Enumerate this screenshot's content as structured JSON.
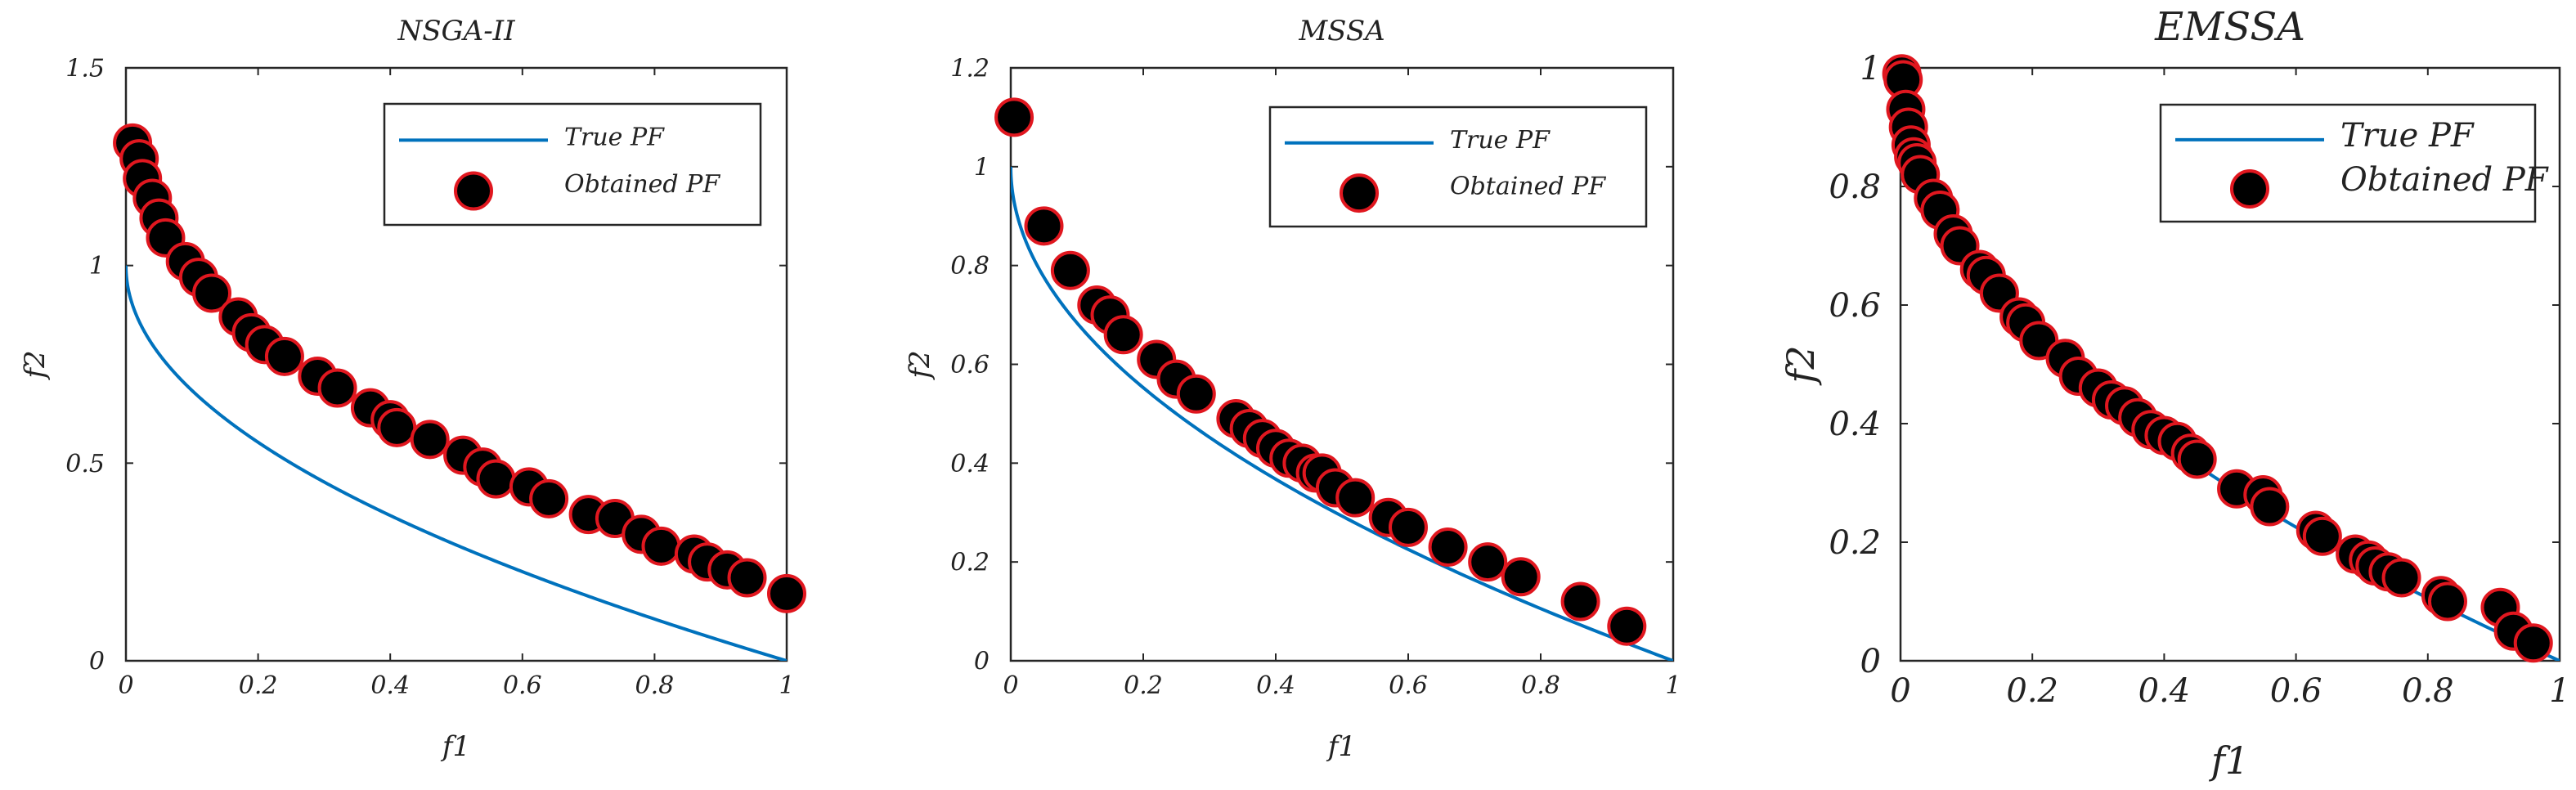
{
  "chart_data": [
    {
      "type": "scatter",
      "title": "NSGA-II",
      "xlabel": "f1",
      "ylabel": "f2",
      "xlim": [
        0,
        1
      ],
      "ylim": [
        0,
        1.5
      ],
      "xticks": [
        "0",
        "0.2",
        "0.4",
        "0.6",
        "0.8",
        "1"
      ],
      "yticks": [
        "0",
        "0.5",
        "1",
        "1.5"
      ],
      "legend_position": "top-right",
      "series": [
        {
          "name": "True PF",
          "kind": "line",
          "color": "#0072BD",
          "function": "1-sqrt(x)"
        },
        {
          "name": "Obtained PF",
          "kind": "marker",
          "color": "#000000",
          "edge_color": "#E0171F",
          "points": [
            [
              0.01,
              1.31
            ],
            [
              0.02,
              1.27
            ],
            [
              0.025,
              1.22
            ],
            [
              0.04,
              1.17
            ],
            [
              0.05,
              1.12
            ],
            [
              0.06,
              1.07
            ],
            [
              0.09,
              1.01
            ],
            [
              0.11,
              0.97
            ],
            [
              0.13,
              0.93
            ],
            [
              0.17,
              0.87
            ],
            [
              0.19,
              0.83
            ],
            [
              0.21,
              0.8
            ],
            [
              0.24,
              0.77
            ],
            [
              0.29,
              0.72
            ],
            [
              0.32,
              0.69
            ],
            [
              0.37,
              0.64
            ],
            [
              0.4,
              0.61
            ],
            [
              0.41,
              0.59
            ],
            [
              0.46,
              0.56
            ],
            [
              0.51,
              0.52
            ],
            [
              0.54,
              0.49
            ],
            [
              0.56,
              0.46
            ],
            [
              0.61,
              0.44
            ],
            [
              0.64,
              0.41
            ],
            [
              0.7,
              0.37
            ],
            [
              0.74,
              0.36
            ],
            [
              0.78,
              0.32
            ],
            [
              0.81,
              0.29
            ],
            [
              0.86,
              0.27
            ],
            [
              0.88,
              0.25
            ],
            [
              0.91,
              0.23
            ],
            [
              0.94,
              0.21
            ],
            [
              1.0,
              0.17
            ]
          ]
        }
      ]
    },
    {
      "type": "scatter",
      "title": "MSSA",
      "xlabel": "f1",
      "ylabel": "f2",
      "xlim": [
        0,
        1
      ],
      "ylim": [
        0,
        1.2
      ],
      "xticks": [
        "0",
        "0.2",
        "0.4",
        "0.6",
        "0.8",
        "1"
      ],
      "yticks": [
        "0",
        "0.2",
        "0.4",
        "0.6",
        "0.8",
        "1",
        "1.2"
      ],
      "legend_position": "top-right",
      "series": [
        {
          "name": "True PF",
          "kind": "line",
          "color": "#0072BD",
          "function": "1-sqrt(x)"
        },
        {
          "name": "Obtained PF",
          "kind": "marker",
          "color": "#000000",
          "edge_color": "#E0171F",
          "points": [
            [
              0.005,
              1.1
            ],
            [
              0.05,
              0.88
            ],
            [
              0.09,
              0.79
            ],
            [
              0.13,
              0.72
            ],
            [
              0.15,
              0.7
            ],
            [
              0.17,
              0.66
            ],
            [
              0.22,
              0.61
            ],
            [
              0.25,
              0.57
            ],
            [
              0.28,
              0.54
            ],
            [
              0.34,
              0.49
            ],
            [
              0.36,
              0.47
            ],
            [
              0.38,
              0.45
            ],
            [
              0.4,
              0.43
            ],
            [
              0.42,
              0.41
            ],
            [
              0.44,
              0.4
            ],
            [
              0.46,
              0.38
            ],
            [
              0.47,
              0.38
            ],
            [
              0.49,
              0.35
            ],
            [
              0.52,
              0.33
            ],
            [
              0.57,
              0.29
            ],
            [
              0.6,
              0.27
            ],
            [
              0.66,
              0.23
            ],
            [
              0.72,
              0.2
            ],
            [
              0.77,
              0.17
            ],
            [
              0.86,
              0.12
            ],
            [
              0.93,
              0.07
            ]
          ]
        }
      ]
    },
    {
      "type": "scatter",
      "title": "EMSSA",
      "xlabel": "f1",
      "ylabel": "f2",
      "xlim": [
        0,
        1
      ],
      "ylim": [
        0,
        1
      ],
      "xticks": [
        "0",
        "0.2",
        "0.4",
        "0.6",
        "0.8",
        "1"
      ],
      "yticks": [
        "0",
        "0.2",
        "0.4",
        "0.6",
        "0.8",
        "1"
      ],
      "legend_position": "top-right",
      "series": [
        {
          "name": "True PF",
          "kind": "line",
          "color": "#0072BD",
          "function": "1-sqrt(x)"
        },
        {
          "name": "Obtained PF",
          "kind": "marker",
          "color": "#000000",
          "edge_color": "#E0171F",
          "points": [
            [
              0.002,
              0.99
            ],
            [
              0.004,
              0.98
            ],
            [
              0.008,
              0.93
            ],
            [
              0.012,
              0.9
            ],
            [
              0.016,
              0.87
            ],
            [
              0.02,
              0.85
            ],
            [
              0.025,
              0.84
            ],
            [
              0.03,
              0.82
            ],
            [
              0.05,
              0.78
            ],
            [
              0.06,
              0.76
            ],
            [
              0.08,
              0.72
            ],
            [
              0.09,
              0.7
            ],
            [
              0.12,
              0.66
            ],
            [
              0.13,
              0.65
            ],
            [
              0.15,
              0.62
            ],
            [
              0.18,
              0.58
            ],
            [
              0.19,
              0.57
            ],
            [
              0.21,
              0.54
            ],
            [
              0.25,
              0.51
            ],
            [
              0.27,
              0.48
            ],
            [
              0.3,
              0.46
            ],
            [
              0.32,
              0.44
            ],
            [
              0.34,
              0.43
            ],
            [
              0.36,
              0.41
            ],
            [
              0.38,
              0.39
            ],
            [
              0.4,
              0.38
            ],
            [
              0.42,
              0.37
            ],
            [
              0.44,
              0.35
            ],
            [
              0.45,
              0.34
            ],
            [
              0.51,
              0.29
            ],
            [
              0.55,
              0.28
            ],
            [
              0.56,
              0.26
            ],
            [
              0.63,
              0.22
            ],
            [
              0.64,
              0.21
            ],
            [
              0.69,
              0.18
            ],
            [
              0.71,
              0.17
            ],
            [
              0.72,
              0.16
            ],
            [
              0.74,
              0.15
            ],
            [
              0.76,
              0.14
            ],
            [
              0.82,
              0.11
            ],
            [
              0.83,
              0.1
            ],
            [
              0.91,
              0.09
            ],
            [
              0.93,
              0.05
            ],
            [
              0.96,
              0.03
            ]
          ]
        }
      ]
    }
  ]
}
